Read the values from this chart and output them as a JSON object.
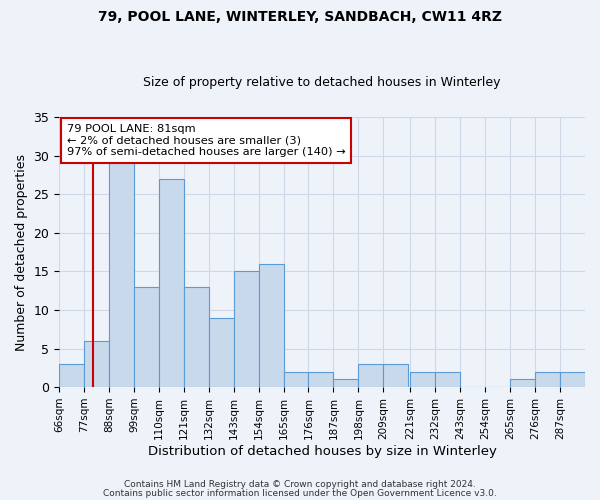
{
  "title1": "79, POOL LANE, WINTERLEY, SANDBACH, CW11 4RZ",
  "title2": "Size of property relative to detached houses in Winterley",
  "xlabel": "Distribution of detached houses by size in Winterley",
  "ylabel": "Number of detached properties",
  "bin_labels": [
    "66sqm",
    "77sqm",
    "88sqm",
    "99sqm",
    "110sqm",
    "121sqm",
    "132sqm",
    "143sqm",
    "154sqm",
    "165sqm",
    "176sqm",
    "187sqm",
    "198sqm",
    "209sqm",
    "221sqm",
    "232sqm",
    "243sqm",
    "254sqm",
    "265sqm",
    "276sqm",
    "287sqm"
  ],
  "bin_edges": [
    66,
    77,
    88,
    99,
    110,
    121,
    132,
    143,
    154,
    165,
    176,
    187,
    198,
    209,
    221,
    232,
    243,
    254,
    265,
    276,
    287
  ],
  "bin_width": 11,
  "bar_heights": [
    3,
    6,
    29,
    13,
    27,
    13,
    9,
    15,
    16,
    2,
    2,
    1,
    3,
    3,
    2,
    2,
    0,
    0,
    1,
    2,
    2
  ],
  "bar_color": "#c9d9ec",
  "bar_edge_color": "#5b9bd5",
  "grid_color": "#d0d8e8",
  "background_color": "#eef2f9",
  "red_line_x": 81,
  "annotation_line1": "79 POOL LANE: 81sqm",
  "annotation_line2": "← 2% of detached houses are smaller (3)",
  "annotation_line3": "97% of semi-detached houses are larger (140) →",
  "annotation_box_color": "#ffffff",
  "annotation_box_edge_color": "#cc0000",
  "ylim": [
    0,
    35
  ],
  "yticks": [
    0,
    5,
    10,
    15,
    20,
    25,
    30,
    35
  ],
  "footer1": "Contains HM Land Registry data © Crown copyright and database right 2024.",
  "footer2": "Contains public sector information licensed under the Open Government Licence v3.0."
}
